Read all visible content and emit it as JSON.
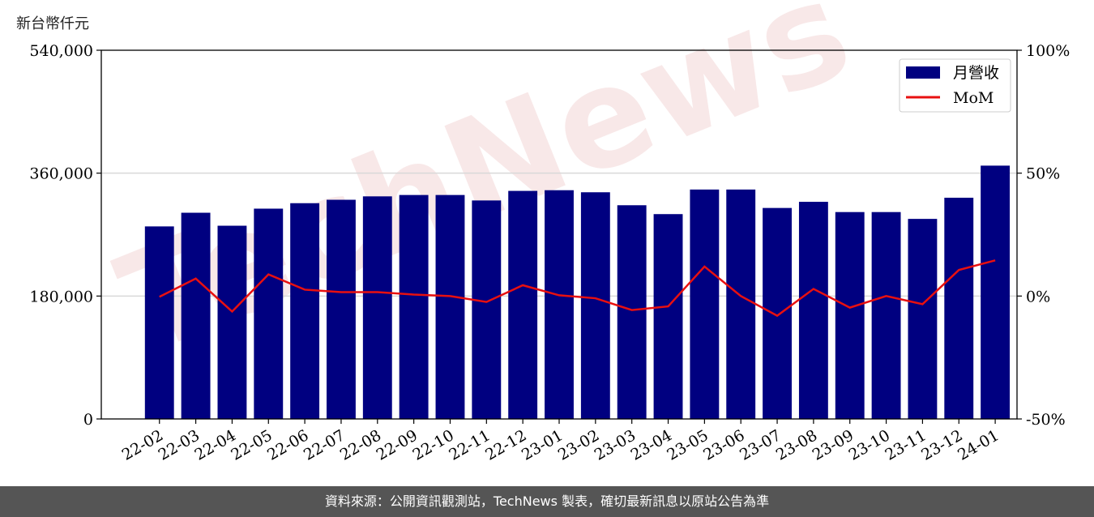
{
  "chart_data": {
    "type": "bar",
    "unit_label": "新台幣仟元",
    "categories": [
      "22-02",
      "22-03",
      "22-04",
      "22-05",
      "22-06",
      "22-07",
      "22-08",
      "22-09",
      "22-10",
      "22-11",
      "22-12",
      "23-01",
      "23-02",
      "23-03",
      "23-04",
      "23-05",
      "23-06",
      "23-07",
      "23-08",
      "23-09",
      "23-10",
      "23-11",
      "23-12",
      "24-01"
    ],
    "series": [
      {
        "name": "月營收",
        "axis": "left",
        "color": "#000080",
        "values": [
          282000,
          302000,
          283000,
          308000,
          316000,
          321000,
          326000,
          328000,
          328000,
          320000,
          334000,
          335000,
          332000,
          313000,
          300000,
          336000,
          336000,
          309000,
          318000,
          303000,
          303000,
          293000,
          324000,
          371000
        ]
      },
      {
        "name": "MoM",
        "axis": "right",
        "type": "line",
        "color": "#e81010",
        "values": [
          -0.3,
          7.1,
          -6.3,
          8.8,
          2.6,
          1.6,
          1.6,
          0.6,
          0.0,
          -2.4,
          4.4,
          0.3,
          -0.9,
          -5.7,
          -4.2,
          12.0,
          0.0,
          -8.0,
          2.9,
          -4.7,
          0.0,
          -3.3,
          10.6,
          14.5
        ]
      }
    ],
    "y_left": {
      "ylim": [
        0,
        540000
      ],
      "ticks": [
        "0",
        "180,000",
        "360,000",
        "540,000"
      ],
      "tick_values": [
        0,
        180000,
        360000,
        540000
      ]
    },
    "y_right": {
      "ylim": [
        -50,
        100
      ],
      "ticks": [
        "-50%",
        "0%",
        "50%",
        "100%"
      ],
      "tick_values": [
        -50,
        0,
        50,
        100
      ]
    },
    "grid": "horizontal",
    "legend_position": "top-right",
    "watermark": "TechNews"
  },
  "footer": {
    "source_text": "資料來源：公開資訊觀測站，TechNews 製表，確切最新訊息以原站公告為準"
  }
}
